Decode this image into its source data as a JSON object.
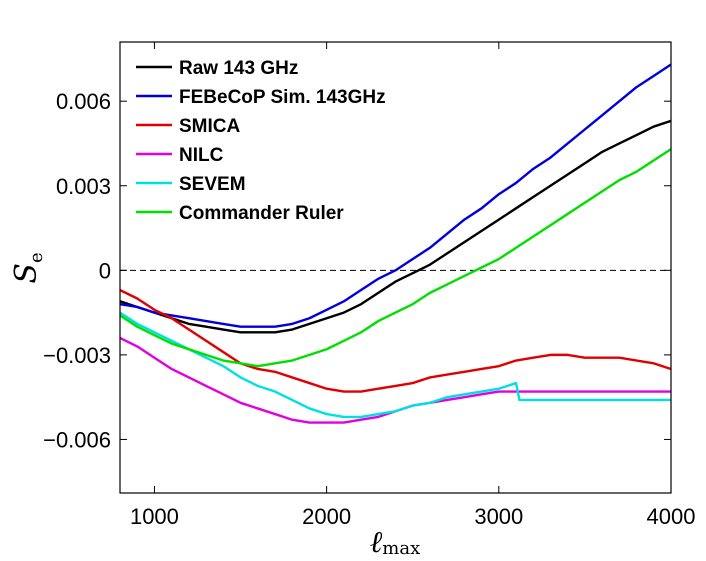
{
  "chart_data": {
    "type": "line",
    "title": "",
    "xlabel": "ℓ",
    "xlabel_sub": "max",
    "ylabel": "S",
    "ylabel_sub": "e",
    "xlim": [
      800,
      4000
    ],
    "ylim": [
      -0.0079,
      0.0081
    ],
    "xticks": [
      1000,
      2000,
      3000,
      4000
    ],
    "xtick_labels": [
      "1000",
      "2000",
      "3000",
      "4000"
    ],
    "yticks": [
      0.006,
      0.003,
      0,
      -0.003,
      -0.006
    ],
    "ytick_labels": [
      "0.006",
      "0.003",
      "0",
      "−0.003",
      "−0.006"
    ],
    "zero_line": true,
    "legend_position": "top-left",
    "series": [
      {
        "name": "Raw 143 GHz",
        "color": "#000000",
        "points": [
          [
            800,
            -0.0011
          ],
          [
            900,
            -0.0013
          ],
          [
            1000,
            -0.0015
          ],
          [
            1100,
            -0.0017
          ],
          [
            1200,
            -0.0019
          ],
          [
            1300,
            -0.002
          ],
          [
            1400,
            -0.0021
          ],
          [
            1500,
            -0.0022
          ],
          [
            1600,
            -0.0022
          ],
          [
            1700,
            -0.0022
          ],
          [
            1800,
            -0.0021
          ],
          [
            1900,
            -0.0019
          ],
          [
            2000,
            -0.0017
          ],
          [
            2100,
            -0.0015
          ],
          [
            2200,
            -0.0012
          ],
          [
            2300,
            -0.0008
          ],
          [
            2400,
            -0.0004
          ],
          [
            2500,
            -0.0001
          ],
          [
            2600,
            0.0002
          ],
          [
            2700,
            0.0006
          ],
          [
            2800,
            0.001
          ],
          [
            2900,
            0.0014
          ],
          [
            3000,
            0.0018
          ],
          [
            3100,
            0.0022
          ],
          [
            3200,
            0.0026
          ],
          [
            3300,
            0.003
          ],
          [
            3400,
            0.0034
          ],
          [
            3500,
            0.0038
          ],
          [
            3600,
            0.0042
          ],
          [
            3700,
            0.0045
          ],
          [
            3800,
            0.0048
          ],
          [
            3900,
            0.0051
          ],
          [
            4000,
            0.0053
          ]
        ]
      },
      {
        "name": "FEBeCoP Sim. 143GHz",
        "color": "#0000dd",
        "points": [
          [
            800,
            -0.0012
          ],
          [
            900,
            -0.0013
          ],
          [
            1000,
            -0.0015
          ],
          [
            1100,
            -0.0016
          ],
          [
            1200,
            -0.0017
          ],
          [
            1300,
            -0.0018
          ],
          [
            1400,
            -0.0019
          ],
          [
            1500,
            -0.002
          ],
          [
            1600,
            -0.002
          ],
          [
            1700,
            -0.002
          ],
          [
            1800,
            -0.0019
          ],
          [
            1900,
            -0.0017
          ],
          [
            2000,
            -0.0014
          ],
          [
            2100,
            -0.0011
          ],
          [
            2200,
            -0.0007
          ],
          [
            2300,
            -0.0003
          ],
          [
            2400,
            0.0
          ],
          [
            2500,
            0.0004
          ],
          [
            2600,
            0.0008
          ],
          [
            2700,
            0.0013
          ],
          [
            2800,
            0.0018
          ],
          [
            2900,
            0.0022
          ],
          [
            3000,
            0.0027
          ],
          [
            3100,
            0.0031
          ],
          [
            3200,
            0.0036
          ],
          [
            3300,
            0.004
          ],
          [
            3400,
            0.0045
          ],
          [
            3500,
            0.005
          ],
          [
            3600,
            0.0055
          ],
          [
            3700,
            0.006
          ],
          [
            3800,
            0.0065
          ],
          [
            3900,
            0.0069
          ],
          [
            4000,
            0.0073
          ]
        ]
      },
      {
        "name": "SMICA",
        "color": "#e00000",
        "points": [
          [
            800,
            -0.0007
          ],
          [
            900,
            -0.001
          ],
          [
            1000,
            -0.0014
          ],
          [
            1100,
            -0.0017
          ],
          [
            1200,
            -0.0021
          ],
          [
            1300,
            -0.0025
          ],
          [
            1400,
            -0.0029
          ],
          [
            1500,
            -0.0033
          ],
          [
            1600,
            -0.0035
          ],
          [
            1700,
            -0.0036
          ],
          [
            1800,
            -0.0038
          ],
          [
            1900,
            -0.004
          ],
          [
            2000,
            -0.0042
          ],
          [
            2100,
            -0.0043
          ],
          [
            2200,
            -0.0043
          ],
          [
            2300,
            -0.0042
          ],
          [
            2400,
            -0.0041
          ],
          [
            2500,
            -0.004
          ],
          [
            2600,
            -0.0038
          ],
          [
            2700,
            -0.0037
          ],
          [
            2800,
            -0.0036
          ],
          [
            2900,
            -0.0035
          ],
          [
            3000,
            -0.0034
          ],
          [
            3100,
            -0.0032
          ],
          [
            3200,
            -0.0031
          ],
          [
            3300,
            -0.003
          ],
          [
            3400,
            -0.003
          ],
          [
            3500,
            -0.0031
          ],
          [
            3600,
            -0.0031
          ],
          [
            3700,
            -0.0031
          ],
          [
            3800,
            -0.0032
          ],
          [
            3900,
            -0.0033
          ],
          [
            4000,
            -0.0035
          ]
        ]
      },
      {
        "name": "NILC",
        "color": "#e000e0",
        "points": [
          [
            800,
            -0.0024
          ],
          [
            900,
            -0.0027
          ],
          [
            1000,
            -0.0031
          ],
          [
            1100,
            -0.0035
          ],
          [
            1200,
            -0.0038
          ],
          [
            1300,
            -0.0041
          ],
          [
            1400,
            -0.0044
          ],
          [
            1500,
            -0.0047
          ],
          [
            1600,
            -0.0049
          ],
          [
            1700,
            -0.0051
          ],
          [
            1800,
            -0.0053
          ],
          [
            1900,
            -0.0054
          ],
          [
            2000,
            -0.0054
          ],
          [
            2100,
            -0.0054
          ],
          [
            2200,
            -0.0053
          ],
          [
            2300,
            -0.0052
          ],
          [
            2400,
            -0.005
          ],
          [
            2500,
            -0.0048
          ],
          [
            2600,
            -0.0047
          ],
          [
            2700,
            -0.0046
          ],
          [
            2800,
            -0.0045
          ],
          [
            2900,
            -0.0044
          ],
          [
            3000,
            -0.0043
          ],
          [
            3100,
            -0.0043
          ],
          [
            3200,
            -0.0043
          ],
          [
            3300,
            -0.0043
          ],
          [
            3400,
            -0.0043
          ],
          [
            3500,
            -0.0043
          ],
          [
            3600,
            -0.0043
          ],
          [
            3700,
            -0.0043
          ],
          [
            3800,
            -0.0043
          ],
          [
            3900,
            -0.0043
          ],
          [
            4000,
            -0.0043
          ]
        ]
      },
      {
        "name": "SEVEM",
        "color": "#00e0e0",
        "points": [
          [
            800,
            -0.0015
          ],
          [
            900,
            -0.0019
          ],
          [
            1000,
            -0.0022
          ],
          [
            1100,
            -0.0025
          ],
          [
            1200,
            -0.0028
          ],
          [
            1300,
            -0.0031
          ],
          [
            1400,
            -0.0034
          ],
          [
            1500,
            -0.0038
          ],
          [
            1600,
            -0.0041
          ],
          [
            1700,
            -0.0043
          ],
          [
            1800,
            -0.0046
          ],
          [
            1900,
            -0.0049
          ],
          [
            2000,
            -0.0051
          ],
          [
            2100,
            -0.0052
          ],
          [
            2200,
            -0.0052
          ],
          [
            2300,
            -0.0051
          ],
          [
            2400,
            -0.005
          ],
          [
            2500,
            -0.0048
          ],
          [
            2600,
            -0.0047
          ],
          [
            2700,
            -0.0045
          ],
          [
            2800,
            -0.0044
          ],
          [
            2900,
            -0.0043
          ],
          [
            3000,
            -0.0042
          ],
          [
            3050,
            -0.0041
          ],
          [
            3100,
            -0.004
          ],
          [
            3120,
            -0.0046
          ],
          [
            3200,
            -0.0046
          ],
          [
            3400,
            -0.0046
          ],
          [
            3600,
            -0.0046
          ],
          [
            3800,
            -0.0046
          ],
          [
            4000,
            -0.0046
          ]
        ]
      },
      {
        "name": "Commander Ruler",
        "color": "#00e000",
        "points": [
          [
            800,
            -0.0016
          ],
          [
            900,
            -0.002
          ],
          [
            1000,
            -0.0023
          ],
          [
            1100,
            -0.0026
          ],
          [
            1200,
            -0.0028
          ],
          [
            1300,
            -0.003
          ],
          [
            1400,
            -0.0032
          ],
          [
            1500,
            -0.0033
          ],
          [
            1600,
            -0.0034
          ],
          [
            1700,
            -0.0033
          ],
          [
            1800,
            -0.0032
          ],
          [
            1900,
            -0.003
          ],
          [
            2000,
            -0.0028
          ],
          [
            2100,
            -0.0025
          ],
          [
            2200,
            -0.0022
          ],
          [
            2300,
            -0.0018
          ],
          [
            2400,
            -0.0015
          ],
          [
            2500,
            -0.0012
          ],
          [
            2600,
            -0.0008
          ],
          [
            2700,
            -0.0005
          ],
          [
            2800,
            -0.0002
          ],
          [
            2900,
            0.0001
          ],
          [
            3000,
            0.0004
          ],
          [
            3100,
            0.0008
          ],
          [
            3200,
            0.0012
          ],
          [
            3300,
            0.0016
          ],
          [
            3400,
            0.002
          ],
          [
            3500,
            0.0024
          ],
          [
            3600,
            0.0028
          ],
          [
            3700,
            0.0032
          ],
          [
            3800,
            0.0035
          ],
          [
            3900,
            0.0039
          ],
          [
            4000,
            0.0043
          ]
        ]
      }
    ]
  }
}
